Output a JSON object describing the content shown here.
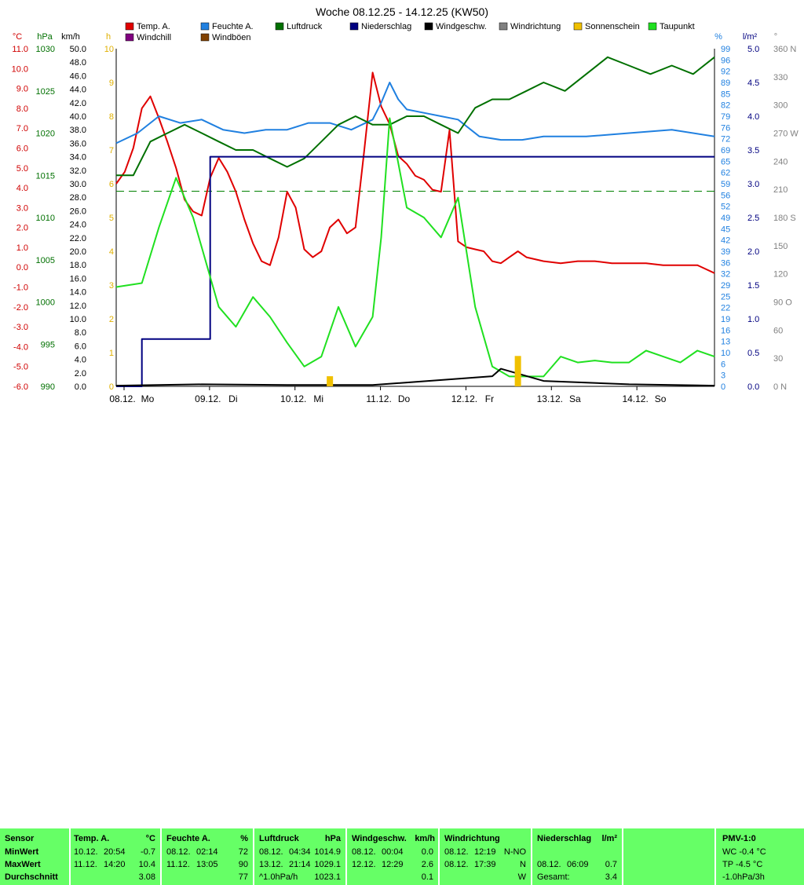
{
  "chart_data": {
    "type": "line",
    "title": "Woche 08.12.25 - 14.12.25 (KW50)",
    "x_labels": [
      "08.12.",
      "Mo",
      "09.12.",
      "Di",
      "10.12.",
      "Mi",
      "11.12.",
      "Do",
      "12.12.",
      "Fr",
      "13.12.",
      "Sa",
      "14.12.",
      "So"
    ],
    "legend": [
      {
        "name": "Temp. A.",
        "color": "#e00000"
      },
      {
        "name": "Feuchte A.",
        "color": "#2080e0"
      },
      {
        "name": "Luftdruck",
        "color": "#007000"
      },
      {
        "name": "Niederschlag",
        "color": "#000080"
      },
      {
        "name": "Windgeschw.",
        "color": "#000000"
      },
      {
        "name": "Windrichtung",
        "color": "#808080"
      },
      {
        "name": "Sonnenschein",
        "color": "#f0c000"
      },
      {
        "name": "Taupunkt",
        "color": "#20e020"
      },
      {
        "name": "Windchill",
        "color": "#800080"
      },
      {
        "name": "Windböen",
        "color": "#804000"
      }
    ],
    "axes": {
      "temp": {
        "unit": "°C",
        "range": [
          -6,
          11
        ],
        "ticks": [
          "11.0",
          "10.0",
          "9.0",
          "8.0",
          "7.0",
          "6.0",
          "5.0",
          "4.0",
          "3.0",
          "2.0",
          "1.0",
          "0.0",
          "-1.0",
          "-2.0",
          "-3.0",
          "-4.0",
          "-5.0",
          "-6.0"
        ],
        "color": "#d00000"
      },
      "pressure": {
        "unit": "hPa",
        "range": [
          990,
          1030
        ],
        "ticks": [
          "1030",
          "1025",
          "1020",
          "1015",
          "1010",
          "1005",
          "1000",
          "995",
          "990"
        ],
        "color": "#007000"
      },
      "wind": {
        "unit": "km/h",
        "range": [
          0,
          50
        ],
        "ticks": [
          "50.0",
          "48.0",
          "46.0",
          "44.0",
          "42.0",
          "40.0",
          "38.0",
          "36.0",
          "34.0",
          "32.0",
          "30.0",
          "28.0",
          "26.0",
          "24.0",
          "22.0",
          "20.0",
          "18.0",
          "16.0",
          "14.0",
          "12.0",
          "10.0",
          "8.0",
          "6.0",
          "4.0",
          "2.0",
          "0.0"
        ],
        "color": "#000000"
      },
      "sun": {
        "unit": "h",
        "range": [
          0,
          10
        ],
        "ticks": [
          "10",
          "9",
          "8",
          "7",
          "6",
          "5",
          "4",
          "3",
          "2",
          "1",
          "0"
        ],
        "color": "#e0b000"
      },
      "humidity": {
        "unit": "%",
        "range": [
          0,
          100
        ],
        "ticks": [
          "99",
          "96",
          "92",
          "89",
          "85",
          "82",
          "79",
          "76",
          "72",
          "69",
          "65",
          "62",
          "59",
          "56",
          "52",
          "49",
          "45",
          "42",
          "39",
          "36",
          "32",
          "29",
          "25",
          "22",
          "19",
          "16",
          "13",
          "10",
          "6",
          "3",
          "0"
        ],
        "color": "#2080e0"
      },
      "rain": {
        "unit": "l/m²",
        "range": [
          0,
          5
        ],
        "ticks": [
          "5.0",
          "4.5",
          "4.0",
          "3.5",
          "3.0",
          "2.5",
          "2.0",
          "1.5",
          "1.0",
          "0.5",
          "0.0"
        ],
        "color": "#000080"
      },
      "direction": {
        "unit": "°",
        "range": [
          0,
          360
        ],
        "ticks": [
          "360 N",
          "330",
          "300",
          "270 W",
          "240",
          "210",
          "180 S",
          "150",
          "120",
          "90 O",
          "60",
          "30",
          "0 N"
        ],
        "color": "#808080"
      }
    },
    "series": [
      {
        "name": "Temp. A.",
        "unit": "°C",
        "x_days": [
          0,
          0.1,
          0.2,
          0.3,
          0.4,
          0.5,
          0.6,
          0.7,
          0.8,
          0.9,
          1,
          1.1,
          1.2,
          1.3,
          1.4,
          1.5,
          1.6,
          1.7,
          1.8,
          1.9,
          2,
          2.1,
          2.2,
          2.3,
          2.4,
          2.5,
          2.6,
          2.7,
          2.8,
          2.9,
          3,
          3.1,
          3.2,
          3.3,
          3.4,
          3.5,
          3.6,
          3.7,
          3.8,
          3.9,
          4,
          4.1,
          4.2,
          4.3,
          4.4,
          4.5,
          4.6,
          4.7,
          4.8,
          4.9,
          5,
          5.2,
          5.4,
          5.6,
          5.8,
          6,
          6.2,
          6.4,
          6.6,
          6.8,
          7
        ],
        "values": [
          4.2,
          4.8,
          6.0,
          8.0,
          8.6,
          7.5,
          6.3,
          5.0,
          3.4,
          2.8,
          2.6,
          4.5,
          5.5,
          4.8,
          3.8,
          2.4,
          1.2,
          0.3,
          0.1,
          1.5,
          3.8,
          3.0,
          0.9,
          0.5,
          0.8,
          2.0,
          2.4,
          1.7,
          2.0,
          5.8,
          9.8,
          8.1,
          7.2,
          5.6,
          5.2,
          4.6,
          4.4,
          3.9,
          3.8,
          6.9,
          1.3,
          1.0,
          0.9,
          0.8,
          0.3,
          0.2,
          0.5,
          0.8,
          0.5,
          0.4,
          0.3,
          0.2,
          0.3,
          0.3,
          0.2,
          0.2,
          0.2,
          0.1,
          0.1,
          0.1,
          -0.3
        ]
      },
      {
        "name": "Feuchte A.",
        "unit": "%",
        "x_days": [
          0,
          0.25,
          0.5,
          0.75,
          1,
          1.25,
          1.5,
          1.75,
          2,
          2.25,
          2.5,
          2.75,
          3,
          3.1,
          3.2,
          3.3,
          3.4,
          3.6,
          3.8,
          4,
          4.25,
          4.5,
          4.75,
          5,
          5.5,
          6,
          6.5,
          7
        ],
        "values": [
          72,
          75,
          80,
          78,
          79,
          76,
          75,
          76,
          76,
          78,
          78,
          76,
          79,
          84,
          90,
          85,
          82,
          81,
          80,
          79,
          74,
          73,
          73,
          74,
          74,
          75,
          76,
          74
        ]
      },
      {
        "name": "Luftdruck",
        "unit": "hPa",
        "x_days": [
          0,
          0.2,
          0.4,
          0.6,
          0.8,
          1,
          1.2,
          1.4,
          1.6,
          1.8,
          2,
          2.2,
          2.4,
          2.6,
          2.8,
          3,
          3.2,
          3.4,
          3.6,
          3.8,
          4,
          4.2,
          4.4,
          4.6,
          4.8,
          5,
          5.25,
          5.5,
          5.75,
          6,
          6.25,
          6.5,
          6.75,
          7
        ],
        "values": [
          1015,
          1015,
          1019,
          1020,
          1021,
          1020,
          1019,
          1018,
          1018,
          1017,
          1016,
          1017,
          1019,
          1021,
          1022,
          1021,
          1021,
          1022,
          1022,
          1021,
          1020,
          1023,
          1024,
          1024,
          1025,
          1026,
          1025,
          1027,
          1029,
          1028,
          1027,
          1028,
          1027,
          1029
        ]
      },
      {
        "name": "Niederschlag",
        "unit": "l/m²",
        "x_days": [
          0,
          0.3,
          0.35,
          1,
          1.05,
          1.1,
          1.2,
          7
        ],
        "values": [
          0,
          0.7,
          0.7,
          0.7,
          0.7,
          3.4,
          3.4,
          3.4
        ]
      },
      {
        "name": "Taupunkt",
        "unit": "°C",
        "x_days": [
          0,
          0.3,
          0.5,
          0.7,
          0.9,
          1,
          1.2,
          1.4,
          1.6,
          1.8,
          2,
          2.2,
          2.4,
          2.6,
          2.8,
          3,
          3.1,
          3.2,
          3.4,
          3.6,
          3.8,
          4,
          4.2,
          4.4,
          4.6,
          4.8,
          5,
          5.2,
          5.4,
          5.6,
          5.8,
          6,
          6.2,
          6.4,
          6.6,
          6.8,
          7
        ],
        "values": [
          -1.0,
          -0.8,
          2.0,
          4.5,
          2.5,
          1.0,
          -2.0,
          -3.0,
          -1.5,
          -2.5,
          -3.8,
          -5.0,
          -4.5,
          -2.0,
          -4.0,
          -2.5,
          1.5,
          7.5,
          3.0,
          2.5,
          1.5,
          3.5,
          -2.0,
          -5.0,
          -5.5,
          -5.5,
          -5.5,
          -4.5,
          -4.8,
          -4.7,
          -4.8,
          -4.8,
          -4.2,
          -4.5,
          -4.8,
          -4.2,
          -4.5
        ]
      },
      {
        "name": "Windgeschw.",
        "unit": "km/h",
        "x_days": [
          0,
          1,
          2,
          3,
          4.4,
          4.5,
          5,
          6,
          7
        ],
        "values": [
          0.1,
          0.3,
          0.2,
          0.2,
          1.5,
          2.6,
          0.8,
          0.3,
          0.1
        ]
      },
      {
        "name": "Sonnenschein",
        "unit": "h",
        "x_days": [
          2.5,
          4.7
        ],
        "values": [
          0.3,
          0.9
        ]
      }
    ],
    "reference_line": {
      "name": "Windrichtung",
      "value_deg": 208,
      "style": "dashed",
      "color": "#008000"
    },
    "grid": false
  },
  "summary": {
    "headers": [
      "Sensor",
      "Temp. A.",
      "°C",
      "Feuchte A.",
      "%",
      "Luftdruck",
      "hPa",
      "Windgeschw.",
      "km/h",
      "Windrichtung",
      "Niederschlag",
      "l/m²",
      "PMV-1:0"
    ],
    "row_labels": [
      "MinWert",
      "MaxWert",
      "Durchschnitt"
    ],
    "temp": [
      [
        "10.12.",
        "20:54",
        "-0.7"
      ],
      [
        "11.12.",
        "14:20",
        "10.4"
      ],
      [
        "",
        "",
        "3.08"
      ]
    ],
    "humidity": [
      [
        "08.12.",
        "02:14",
        "72"
      ],
      [
        "11.12.",
        "13:05",
        "90"
      ],
      [
        "",
        "",
        "77"
      ]
    ],
    "pressure": [
      [
        "08.12.",
        "04:34",
        "1014.9"
      ],
      [
        "13.12.",
        "21:14",
        "1029.1"
      ],
      [
        "^1.0hPa/h",
        "",
        "1023.1"
      ]
    ],
    "wind": [
      [
        "08.12.",
        "00:04",
        "0.0"
      ],
      [
        "12.12.",
        "12:29",
        "2.6"
      ],
      [
        "",
        "",
        "0.1"
      ]
    ],
    "direction": [
      [
        "08.12.",
        "12:19",
        "N-NO"
      ],
      [
        "08.12.",
        "17:39",
        "N"
      ],
      [
        "",
        "",
        "W"
      ]
    ],
    "rain": [
      [
        "",
        "",
        ""
      ],
      [
        "08.12.",
        "06:09",
        "0.7"
      ],
      [
        "Gesamt:",
        "",
        "3.4"
      ]
    ],
    "pmv": [
      "WC -0.4 °C",
      "TP -4.5 °C",
      "-1.0hPa/3h"
    ]
  }
}
